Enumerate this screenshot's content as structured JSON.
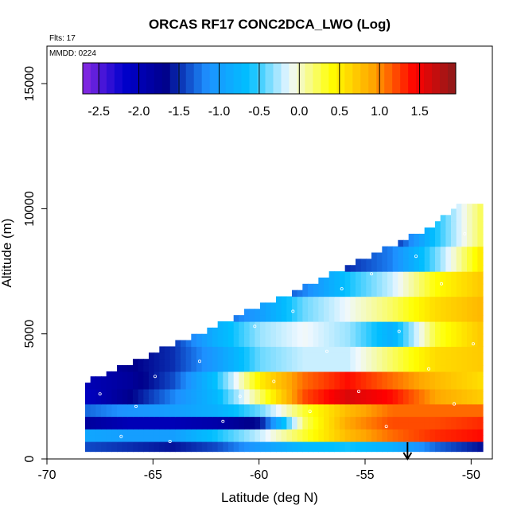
{
  "chart_data": {
    "type": "heatmap",
    "title": "ORCAS RF17 CONC2DCA_LWO (Log)",
    "flights_note": "Flts: 17",
    "date_note": "MMDD: 0224",
    "xlabel": "Latitude (deg N)",
    "ylabel": "Altitude (m)",
    "xlim": [
      -70,
      -49
    ],
    "ylim": [
      0,
      16500
    ],
    "x_ticks": [
      -70,
      -65,
      -60,
      -55,
      -50
    ],
    "y_ticks": [
      0,
      5000,
      10000,
      15000
    ],
    "x_tick_labels": [
      "-70",
      "-65",
      "-60",
      "-55",
      "-50"
    ],
    "y_tick_labels": [
      "0",
      "5000",
      "10000",
      "15000"
    ],
    "colorbar": {
      "range": [
        -2.7,
        1.95
      ],
      "tick_values": [
        -2.5,
        -2.0,
        -1.5,
        -1.0,
        -0.5,
        0.0,
        0.5,
        1.0,
        1.5
      ],
      "tick_labels": [
        "-2.5",
        "-2.0",
        "-1.5",
        "-1.0",
        "-0.5",
        "0.0",
        "0.5",
        "1.0",
        "1.5"
      ],
      "colors": [
        "#8a2be2",
        "#0000cd",
        "#00008b",
        "#1e90ff",
        "#00bfff",
        "#f0f8ff",
        "#ffff00",
        "#ffa500",
        "#ff0000",
        "#8b1a1a"
      ]
    },
    "marker_arrow_latitude": -53,
    "data_extent": {
      "lat_min": -68.2,
      "lat_max": -49.6,
      "alt_min": 300,
      "alt_max": 10200,
      "top_boundary": [
        [
          -68.2,
          3000
        ],
        [
          -66,
          3700
        ],
        [
          -64,
          4500
        ],
        [
          -62,
          5200
        ],
        [
          -60,
          6000
        ],
        [
          -58,
          6700
        ],
        [
          -56,
          7500
        ],
        [
          -54,
          8300
        ],
        [
          -52,
          9100
        ],
        [
          -51,
          9800
        ],
        [
          -50.2,
          10200
        ]
      ]
    },
    "bands": [
      {
        "alt_min": 300,
        "alt_max": 700,
        "values": [
          -1.4,
          -1.5,
          -1.6,
          -1.4,
          -1.0,
          -0.7,
          -0.6,
          -0.8,
          -1.3,
          -1.6
        ]
      },
      {
        "alt_min": 700,
        "alt_max": 1200,
        "values": [
          -0.9,
          -1.0,
          -1.0,
          -0.6,
          -0.2,
          0.3,
          0.8,
          1.1,
          1.3,
          1.4
        ]
      },
      {
        "alt_min": 1200,
        "alt_max": 1700,
        "values": [
          -1.8,
          -2.0,
          -2.0,
          -1.9,
          -1.6,
          0.2,
          0.9,
          1.2,
          1.2,
          1.3
        ]
      },
      {
        "alt_min": 1700,
        "alt_max": 2200,
        "values": [
          -1.3,
          -1.1,
          -1.0,
          -0.8,
          -0.4,
          0.3,
          0.8,
          1.1,
          1.1,
          1.1
        ]
      },
      {
        "alt_min": 2200,
        "alt_max": 2800,
        "values": [
          -2.1,
          -1.7,
          -1.2,
          -0.7,
          0.2,
          1.2,
          1.6,
          1.4,
          0.9,
          0.7
        ]
      },
      {
        "alt_min": 2800,
        "alt_max": 3500,
        "values": [
          -2.0,
          -1.8,
          -1.4,
          -0.6,
          0.5,
          1.1,
          1.4,
          1.1,
          0.8,
          0.6
        ]
      },
      {
        "alt_min": 3500,
        "alt_max": 4500,
        "values": [
          -2.0,
          -1.7,
          -1.5,
          -1.0,
          -0.4,
          -0.2,
          -0.2,
          0.2,
          0.6,
          0.7
        ]
      },
      {
        "alt_min": 4500,
        "alt_max": 5500,
        "values": [
          -2.0,
          -1.9,
          -1.5,
          -0.8,
          -0.3,
          -0.1,
          -0.3,
          -0.8,
          0.3,
          0.7
        ]
      },
      {
        "alt_min": 5500,
        "alt_max": 6500,
        "values": [
          -2.0,
          -2.0,
          -1.9,
          -1.4,
          -1.0,
          -0.4,
          -0.1,
          0.2,
          0.6,
          0.8
        ]
      },
      {
        "alt_min": 6500,
        "alt_max": 7500,
        "values": [
          -2.0,
          -2.0,
          -2.0,
          -1.9,
          -1.6,
          -1.2,
          -0.6,
          -0.2,
          0.4,
          0.7
        ]
      },
      {
        "alt_min": 7500,
        "alt_max": 8500,
        "values": [
          -2.0,
          -2.0,
          -2.0,
          -2.0,
          -2.0,
          -1.8,
          -1.5,
          -1.2,
          -0.4,
          0.5
        ]
      },
      {
        "alt_min": 8500,
        "alt_max": 10200,
        "values": [
          -2.0,
          -2.0,
          -2.0,
          -2.0,
          -2.0,
          -2.0,
          -1.9,
          -1.6,
          -0.6,
          0.2
        ]
      }
    ]
  }
}
